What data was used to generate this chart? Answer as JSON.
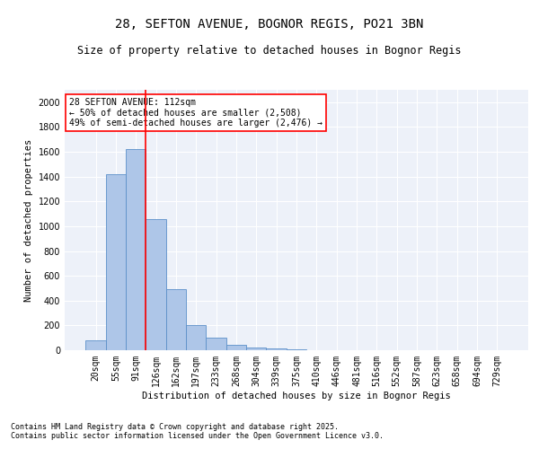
{
  "title1": "28, SEFTON AVENUE, BOGNOR REGIS, PO21 3BN",
  "title2": "Size of property relative to detached houses in Bognor Regis",
  "xlabel": "Distribution of detached houses by size in Bognor Regis",
  "ylabel": "Number of detached properties",
  "bar_labels": [
    "20sqm",
    "55sqm",
    "91sqm",
    "126sqm",
    "162sqm",
    "197sqm",
    "233sqm",
    "268sqm",
    "304sqm",
    "339sqm",
    "375sqm",
    "410sqm",
    "446sqm",
    "481sqm",
    "516sqm",
    "552sqm",
    "587sqm",
    "623sqm",
    "658sqm",
    "694sqm",
    "729sqm"
  ],
  "bar_values": [
    80,
    1420,
    1620,
    1060,
    490,
    205,
    105,
    40,
    20,
    15,
    5,
    3,
    1,
    1,
    0,
    0,
    0,
    0,
    0,
    0,
    0
  ],
  "bar_color": "#aec6e8",
  "bar_edgecolor": "#5b8fc9",
  "vline_x_index": 2,
  "vline_color": "red",
  "annotation_text": "28 SEFTON AVENUE: 112sqm\n← 50% of detached houses are smaller (2,508)\n49% of semi-detached houses are larger (2,476) →",
  "annotation_bbox_edgecolor": "red",
  "annotation_bbox_facecolor": "white",
  "ylim": [
    0,
    2100
  ],
  "yticks": [
    0,
    200,
    400,
    600,
    800,
    1000,
    1200,
    1400,
    1600,
    1800,
    2000
  ],
  "bg_color": "#edf1f9",
  "grid_color": "white",
  "footer1": "Contains HM Land Registry data © Crown copyright and database right 2025.",
  "footer2": "Contains public sector information licensed under the Open Government Licence v3.0.",
  "title_fontsize": 10,
  "subtitle_fontsize": 8.5,
  "axis_label_fontsize": 7.5,
  "tick_fontsize": 7,
  "annotation_fontsize": 7,
  "footer_fontsize": 6
}
